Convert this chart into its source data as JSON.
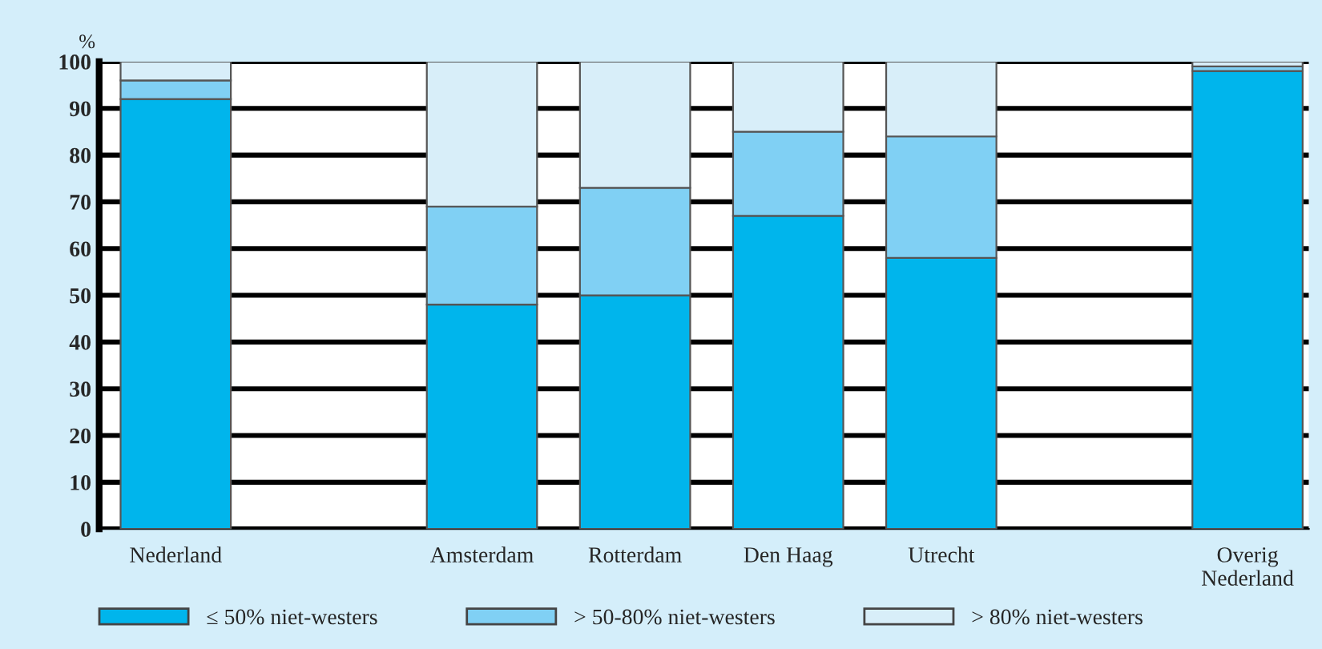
{
  "chart_data": {
    "type": "bar",
    "stacked": true,
    "ylabel": "%",
    "categories": [
      "Nederland",
      null,
      "Amsterdam",
      "Rotterdam",
      "Den Haag",
      "Utrecht",
      null,
      "Overig\nNederland"
    ],
    "series": [
      {
        "name": "≤ 50% niet-westers",
        "color": "#00b5ec",
        "values": [
          92,
          null,
          48,
          50,
          67,
          58,
          null,
          98
        ]
      },
      {
        "name": "> 50-80% niet-westers",
        "color": "#80d0f4",
        "values": [
          4,
          null,
          21,
          23,
          18,
          26,
          null,
          1
        ]
      },
      {
        "name": "> 80% niet-westers",
        "color": "#d8eef9",
        "values": [
          4,
          null,
          31,
          27,
          15,
          16,
          null,
          1
        ]
      }
    ],
    "ylim": [
      0,
      100
    ],
    "yticks": [
      0,
      10,
      20,
      30,
      40,
      50,
      60,
      70,
      80,
      90,
      100
    ],
    "grid": "y",
    "legend": "bottom"
  }
}
